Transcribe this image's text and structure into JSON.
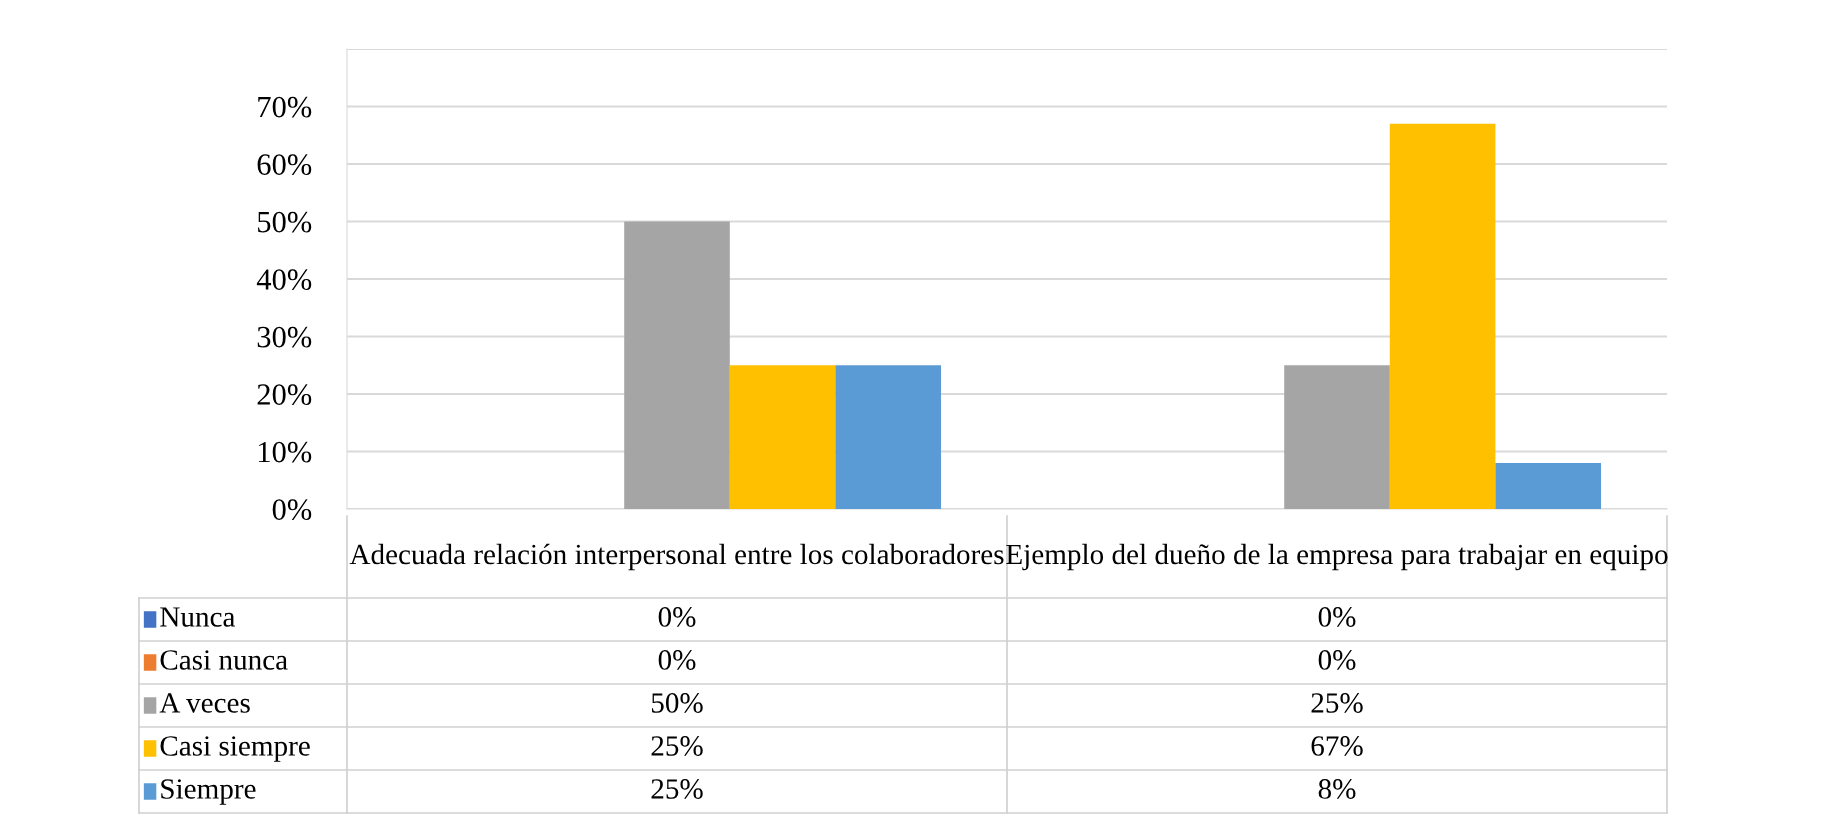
{
  "chart_data": {
    "type": "bar",
    "categories": [
      "Adecuada relación interpersonal entre los colaboradores",
      "Ejemplo del dueño de la empresa para trabajar en equipo"
    ],
    "series": [
      {
        "name": "Nunca",
        "color": "#4472c4",
        "values": [
          0,
          0
        ],
        "value_labels": [
          "0%",
          "0%"
        ]
      },
      {
        "name": "Casi nunca",
        "color": "#ed7d31",
        "values": [
          0,
          0
        ],
        "value_labels": [
          "0%",
          "0%"
        ]
      },
      {
        "name": "A veces",
        "color": "#a5a5a5",
        "values": [
          50,
          25
        ],
        "value_labels": [
          "50%",
          "25%"
        ]
      },
      {
        "name": "Casi siempre",
        "color": "#ffc000",
        "values": [
          25,
          67
        ],
        "value_labels": [
          "25%",
          "67%"
        ]
      },
      {
        "name": "Siempre",
        "color": "#5b9bd5",
        "values": [
          25,
          8
        ],
        "value_labels": [
          "25%",
          "8%"
        ]
      }
    ],
    "ylim": [
      0,
      80
    ],
    "yticks": [
      {
        "value": 0,
        "label": "0%"
      },
      {
        "value": 10,
        "label": "10%"
      },
      {
        "value": 20,
        "label": "20%"
      },
      {
        "value": 30,
        "label": "30%"
      },
      {
        "value": 40,
        "label": "40%"
      },
      {
        "value": 50,
        "label": "50%"
      },
      {
        "value": 60,
        "label": "60%"
      },
      {
        "value": 70,
        "label": "70%"
      },
      {
        "value": 80,
        "label": null
      }
    ],
    "grid": "y",
    "legend": "bottom"
  }
}
